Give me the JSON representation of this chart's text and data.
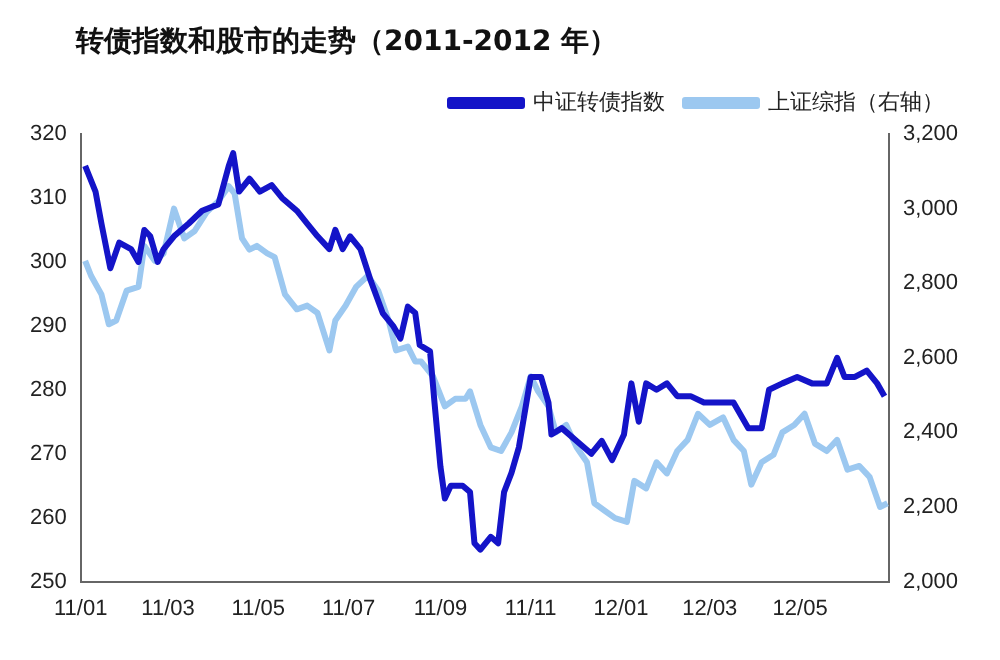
{
  "chart_data": {
    "type": "line",
    "title": "转债指数和股市的走势（2011-2012 年）",
    "xlim": [
      "2011-01-01",
      "2012-06-30"
    ],
    "xticks": [
      {
        "value": "2011-01-01",
        "label": "11/01"
      },
      {
        "value": "2011-03-01",
        "label": "11/03"
      },
      {
        "value": "2011-05-01",
        "label": "11/05"
      },
      {
        "value": "2011-07-01",
        "label": "11/07"
      },
      {
        "value": "2011-09-01",
        "label": "11/09"
      },
      {
        "value": "2011-11-01",
        "label": "11/11"
      },
      {
        "value": "2012-01-01",
        "label": "12/01"
      },
      {
        "value": "2012-03-01",
        "label": "12/03"
      },
      {
        "value": "2012-05-01",
        "label": "12/05"
      }
    ],
    "ylim": [
      250,
      320
    ],
    "yticks": [
      250,
      260,
      270,
      280,
      290,
      300,
      310,
      320
    ],
    "y2lim": [
      2000,
      3200
    ],
    "y2ticks": [
      {
        "value": 2000,
        "label": "2,000"
      },
      {
        "value": 2200,
        "label": "2,200"
      },
      {
        "value": 2400,
        "label": "2,400"
      },
      {
        "value": 2600,
        "label": "2,600"
      },
      {
        "value": 2800,
        "label": "2,800"
      },
      {
        "value": 3000,
        "label": "3,000"
      },
      {
        "value": 3200,
        "label": "3,200"
      }
    ],
    "grid": false,
    "legend": "top",
    "marker": "none",
    "line_style": "solid",
    "series": [
      {
        "name": "中证转债指数",
        "color": "#1414c8",
        "x": [
          "2011-01-04",
          "2011-01-11",
          "2011-01-15",
          "2011-01-21",
          "2011-01-27",
          "2011-02-04",
          "2011-02-09",
          "2011-02-13",
          "2011-02-17",
          "2011-02-22",
          "2011-02-26",
          "2011-03-05",
          "2011-03-15",
          "2011-03-24",
          "2011-04-04",
          "2011-04-11",
          "2011-04-14",
          "2011-04-18",
          "2011-04-25",
          "2011-05-02",
          "2011-05-10",
          "2011-05-17",
          "2011-05-27",
          "2011-06-03",
          "2011-06-10",
          "2011-06-18",
          "2011-06-22",
          "2011-06-27",
          "2011-07-02",
          "2011-07-09",
          "2011-07-16",
          "2011-07-24",
          "2011-07-31",
          "2011-08-05",
          "2011-08-10",
          "2011-08-15",
          "2011-08-18",
          "2011-08-25",
          "2011-08-28",
          "2011-09-01",
          "2011-09-04",
          "2011-09-08",
          "2011-09-16",
          "2011-09-21",
          "2011-09-24",
          "2011-09-28",
          "2011-10-05",
          "2011-10-10",
          "2011-10-14",
          "2011-10-19",
          "2011-10-24",
          "2011-11-01",
          "2011-11-08",
          "2011-11-13",
          "2011-11-15",
          "2011-11-22",
          "2011-12-02",
          "2011-12-12",
          "2011-12-19",
          "2011-12-26",
          "2012-01-03",
          "2012-01-08",
          "2012-01-13",
          "2012-01-18",
          "2012-01-25",
          "2012-02-01",
          "2012-02-08",
          "2012-02-17",
          "2012-02-26",
          "2012-03-07",
          "2012-03-17",
          "2012-03-27",
          "2012-04-05",
          "2012-04-10",
          "2012-04-19",
          "2012-04-29",
          "2012-05-09",
          "2012-05-19",
          "2012-05-26",
          "2012-05-31",
          "2012-06-07",
          "2012-06-15",
          "2012-06-22",
          "2012-06-27"
        ],
        "values": [
          315,
          311,
          306,
          299,
          303,
          302,
          300,
          305,
          304,
          300,
          302,
          304,
          306,
          308,
          309,
          315,
          317,
          311,
          313,
          311,
          312,
          310,
          308,
          306,
          304,
          302,
          305,
          302,
          304,
          302,
          297,
          292,
          290,
          288,
          293,
          292,
          287,
          286,
          278,
          268,
          263,
          265,
          265,
          264,
          256,
          255,
          257,
          256,
          264,
          267,
          271,
          282,
          282,
          278,
          273,
          274,
          272,
          270,
          272,
          269,
          273,
          281,
          275,
          281,
          280,
          281,
          279,
          279,
          278,
          278,
          278,
          274,
          274,
          280,
          281,
          282,
          281,
          281,
          285,
          282,
          282,
          283,
          281,
          279
        ]
      },
      {
        "name": "上证综指（右轴）",
        "color": "#9cc8f0",
        "axis": "y2",
        "x": [
          "2011-01-04",
          "2011-01-08",
          "2011-01-15",
          "2011-01-20",
          "2011-01-25",
          "2011-02-01",
          "2011-02-09",
          "2011-02-13",
          "2011-02-20",
          "2011-02-26",
          "2011-03-05",
          "2011-03-12",
          "2011-03-19",
          "2011-03-27",
          "2011-04-04",
          "2011-04-11",
          "2011-04-15",
          "2011-04-20",
          "2011-04-25",
          "2011-04-30",
          "2011-05-07",
          "2011-05-12",
          "2011-05-19",
          "2011-05-27",
          "2011-06-03",
          "2011-06-10",
          "2011-06-18",
          "2011-06-22",
          "2011-06-29",
          "2011-07-06",
          "2011-07-14",
          "2011-07-21",
          "2011-07-28",
          "2011-08-02",
          "2011-08-10",
          "2011-08-15",
          "2011-08-19",
          "2011-08-27",
          "2011-09-04",
          "2011-09-11",
          "2011-09-18",
          "2011-09-21",
          "2011-09-28",
          "2011-10-05",
          "2011-10-12",
          "2011-10-19",
          "2011-10-26",
          "2011-11-01",
          "2011-11-06",
          "2011-11-13",
          "2011-11-18",
          "2011-11-25",
          "2011-12-02",
          "2011-12-09",
          "2011-12-14",
          "2011-12-21",
          "2011-12-28",
          "2012-01-05",
          "2012-01-10",
          "2012-01-18",
          "2012-01-25",
          "2012-02-01",
          "2012-02-08",
          "2012-02-15",
          "2012-02-22",
          "2012-03-01",
          "2012-03-10",
          "2012-03-17",
          "2012-03-24",
          "2012-03-29",
          "2012-04-05",
          "2012-04-13",
          "2012-04-19",
          "2012-04-27",
          "2012-05-04",
          "2012-05-11",
          "2012-05-19",
          "2012-05-26",
          "2012-06-02",
          "2012-06-10",
          "2012-06-17",
          "2012-06-24",
          "2012-06-29"
        ],
        "values": [
          2860,
          2820,
          2770,
          2690,
          2700,
          2780,
          2790,
          2900,
          2860,
          2880,
          3000,
          2920,
          2940,
          2990,
          3020,
          3060,
          3040,
          2920,
          2890,
          2900,
          2880,
          2870,
          2770,
          2730,
          2740,
          2720,
          2620,
          2700,
          2740,
          2790,
          2820,
          2780,
          2700,
          2620,
          2630,
          2590,
          2590,
          2550,
          2470,
          2490,
          2490,
          2510,
          2420,
          2360,
          2350,
          2400,
          2470,
          2550,
          2510,
          2470,
          2400,
          2420,
          2360,
          2320,
          2210,
          2190,
          2170,
          2160,
          2270,
          2250,
          2320,
          2290,
          2350,
          2380,
          2450,
          2420,
          2440,
          2380,
          2350,
          2260,
          2320,
          2340,
          2400,
          2420,
          2450,
          2370,
          2350,
          2380,
          2300,
          2310,
          2280,
          2200,
          2210
        ]
      }
    ]
  }
}
